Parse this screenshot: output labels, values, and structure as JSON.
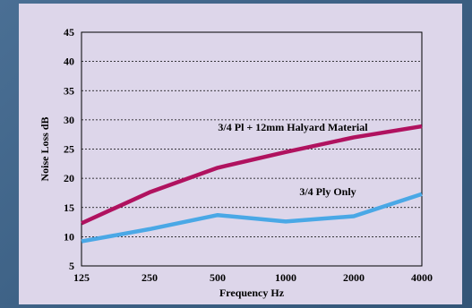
{
  "chart_data": {
    "type": "line",
    "title": "",
    "xlabel": "Frequency Hz",
    "ylabel": "Noise Loss dB",
    "categories": [
      "125",
      "250",
      "500",
      "1000",
      "2000",
      "4000"
    ],
    "yticks": [
      "5",
      "10",
      "15",
      "20",
      "25",
      "30",
      "35",
      "40",
      "45"
    ],
    "ylim": [
      5,
      45
    ],
    "grid": "horizontal dotted",
    "legend": "none",
    "series": [
      {
        "name": "3/4 Pl + 12mm Halyard Material",
        "values": [
          12.3,
          17.6,
          21.8,
          24.5,
          27.0,
          28.9
        ],
        "color": "#b0125f"
      },
      {
        "name": "3/4 Ply Only",
        "values": [
          9.2,
          11.3,
          13.7,
          12.6,
          13.5,
          17.3
        ],
        "color": "#4aa8e6"
      }
    ]
  }
}
